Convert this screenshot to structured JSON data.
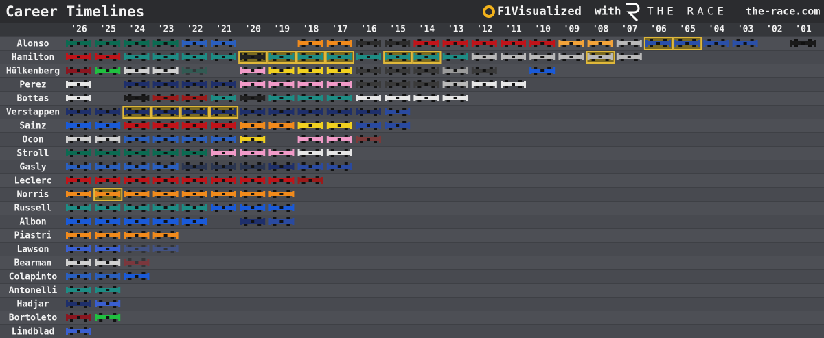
{
  "chart_data": {
    "type": "timeline",
    "title": "Career Timelines",
    "brand": "F1Visualized",
    "connector": "with",
    "partner": "THE RACE",
    "partner_site": "the-race.com",
    "categories": [
      "'26",
      "'25",
      "'24",
      "'23",
      "'22",
      "'21",
      "'20",
      "'19",
      "'18",
      "'17",
      "'16",
      "'15",
      "'14",
      "'13",
      "'12",
      "'11",
      "'10",
      "'09",
      "'08",
      "'07",
      "'06",
      "'05",
      "'04",
      "'03",
      "'02",
      "'01"
    ],
    "series": [
      {
        "name": "Alonso",
        "champion": [
          "'06",
          "'05"
        ],
        "partial": [],
        "values": [
          "#0b6b52",
          "#0b6b52",
          "#0b6b52",
          "#0b6b52",
          "#2a5fbf",
          "#2a5fbf",
          null,
          null,
          "#f08a1c",
          "#f08a1c",
          "#2d2d2d",
          "#2d2d2d",
          "#c0141a",
          "#c0141a",
          "#c0141a",
          "#c0141a",
          "#c0141a",
          "#f2a33a",
          "#f2a33a",
          "#b8b8b8",
          "#2a4fa8",
          "#2a4fa8",
          "#2a4fa8",
          "#2a4fa8",
          null,
          "#1a1a1a"
        ]
      },
      {
        "name": "Hamilton",
        "champion": [
          "'20",
          "'19",
          "'18",
          "'17",
          "'15",
          "'14",
          "'08"
        ],
        "partial": [],
        "values": [
          "#c0141a",
          "#c0141a",
          "#1d8c84",
          "#1d8c84",
          "#1d8c84",
          "#1d8c84",
          "#222222",
          "#1d8c84",
          "#1d8c84",
          "#1d8c84",
          "#1d8c84",
          "#1d8c84",
          "#1d8c84",
          "#1d8c84",
          "#b8b8b8",
          "#b8b8b8",
          "#b8b8b8",
          "#b8b8b8",
          "#b8b8b8",
          "#b8b8b8",
          null,
          null,
          null,
          null,
          null,
          null
        ]
      },
      {
        "name": "Hülkenberg",
        "champion": [],
        "partial": [
          "'22"
        ],
        "values": [
          "#8a1620",
          "#20c040",
          "#d0d0d0",
          "#d0d0d0",
          "#0b6b52",
          null,
          "#f19bc8",
          "#f0d020",
          "#f0d020",
          "#f0d020",
          "#3a3a3a",
          "#3a3a3a",
          "#3a3a3a",
          "#9a9a9a",
          "#3a3a3a",
          null,
          "#1a5ad8",
          null,
          null,
          null,
          null,
          null,
          null,
          null,
          null,
          null
        ]
      },
      {
        "name": "Perez",
        "champion": [],
        "partial": [],
        "values": [
          "#e6e6e6",
          null,
          "#1e2f6b",
          "#1e2f6b",
          "#1e2f6b",
          "#1e2f6b",
          "#f19bc8",
          "#f19bc8",
          "#f19bc8",
          "#f19bc8",
          "#3a3a3a",
          "#3a3a3a",
          "#3a3a3a",
          "#b8b8b8",
          "#e6e6e6",
          "#e6e6e6",
          null,
          null,
          null,
          null,
          null,
          null,
          null,
          null,
          null,
          null
        ]
      },
      {
        "name": "Bottas",
        "champion": [],
        "partial": [],
        "values": [
          "#e6e6e6",
          null,
          "#1b1b1b",
          "#9b1b1b",
          "#9b1b1b",
          "#1d8c84",
          "#222222",
          "#1d8c84",
          "#1d8c84",
          "#1d8c84",
          "#e6e6e6",
          "#e6e6e6",
          "#e6e6e6",
          "#e6e6e6",
          null,
          null,
          null,
          null,
          null,
          null,
          null,
          null,
          null,
          null,
          null,
          null
        ]
      },
      {
        "name": "Verstappen",
        "champion": [
          "'24",
          "'23",
          "'22",
          "'21"
        ],
        "partial": [],
        "values": [
          "#1e2f6b",
          "#1e2f6b",
          "#1e2f6b",
          "#1e2f6b",
          "#1e2f6b",
          "#1e2f6b",
          "#1e2f6b",
          "#1e2f6b",
          "#1e2f6b",
          "#1e2f6b",
          "#1e2f6b",
          "#2a4aa0",
          null,
          null,
          null,
          null,
          null,
          null,
          null,
          null,
          null,
          null,
          null,
          null,
          null,
          null
        ]
      },
      {
        "name": "Sainz",
        "champion": [],
        "partial": [],
        "values": [
          "#1a5ad8",
          "#1a5ad8",
          "#c0141a",
          "#c0141a",
          "#c0141a",
          "#c0141a",
          "#f08a1c",
          "#f08a1c",
          "#f0d020",
          "#f0d020",
          "#2a4aa0",
          "#2a4aa0",
          null,
          null,
          null,
          null,
          null,
          null,
          null,
          null,
          null,
          null,
          null,
          null,
          null,
          null
        ]
      },
      {
        "name": "Ocon",
        "champion": [],
        "partial": [],
        "values": [
          "#d0d0d0",
          "#d0d0d0",
          "#2a5fbf",
          "#2a5fbf",
          "#2a5fbf",
          "#2a5fbf",
          "#f0d020",
          null,
          "#f19bc8",
          "#f19bc8",
          "#7a3a3a",
          null,
          null,
          null,
          null,
          null,
          null,
          null,
          null,
          null,
          null,
          null,
          null,
          null,
          null,
          null
        ]
      },
      {
        "name": "Stroll",
        "champion": [],
        "partial": [],
        "values": [
          "#0b6b52",
          "#0b6b52",
          "#0b6b52",
          "#0b6b52",
          "#0b6b52",
          "#f19bc8",
          "#f19bc8",
          "#f19bc8",
          "#e6e6e6",
          "#e6e6e6",
          null,
          null,
          null,
          null,
          null,
          null,
          null,
          null,
          null,
          null,
          null,
          null,
          null,
          null,
          null,
          null
        ]
      },
      {
        "name": "Gasly",
        "champion": [],
        "partial": [],
        "values": [
          "#2a5fbf",
          "#2a5fbf",
          "#2a5fbf",
          "#2a5fbf",
          "#2a3550",
          "#2a3550",
          "#2a3550",
          "#1e2f6b",
          "#2a4aa0",
          "#2a4aa0",
          null,
          null,
          null,
          null,
          null,
          null,
          null,
          null,
          null,
          null,
          null,
          null,
          null,
          null,
          null,
          null
        ]
      },
      {
        "name": "Leclerc",
        "champion": [],
        "partial": [],
        "values": [
          "#c0141a",
          "#c0141a",
          "#c0141a",
          "#c0141a",
          "#c0141a",
          "#c0141a",
          "#c0141a",
          "#c0141a",
          "#9b1b1b",
          null,
          null,
          null,
          null,
          null,
          null,
          null,
          null,
          null,
          null,
          null,
          null,
          null,
          null,
          null,
          null,
          null
        ]
      },
      {
        "name": "Norris",
        "champion": [
          "'25"
        ],
        "partial": [],
        "values": [
          "#f08a1c",
          "#f08a1c",
          "#f08a1c",
          "#f08a1c",
          "#f08a1c",
          "#f08a1c",
          "#f08a1c",
          "#f08a1c",
          null,
          null,
          null,
          null,
          null,
          null,
          null,
          null,
          null,
          null,
          null,
          null,
          null,
          null,
          null,
          null,
          null,
          null
        ]
      },
      {
        "name": "Russell",
        "champion": [],
        "partial": [],
        "values": [
          "#1d8c84",
          "#1d8c84",
          "#1d8c84",
          "#1d8c84",
          "#1d8c84",
          "#1a5ad8",
          "#1a5ad8",
          "#1a5ad8",
          null,
          null,
          null,
          null,
          null,
          null,
          null,
          null,
          null,
          null,
          null,
          null,
          null,
          null,
          null,
          null,
          null,
          null
        ]
      },
      {
        "name": "Albon",
        "champion": [],
        "partial": [],
        "values": [
          "#1a5ad8",
          "#1a5ad8",
          "#1a5ad8",
          "#1a5ad8",
          "#1a5ad8",
          null,
          "#1e2f6b",
          "#2a4aa0",
          null,
          null,
          null,
          null,
          null,
          null,
          null,
          null,
          null,
          null,
          null,
          null,
          null,
          null,
          null,
          null,
          null,
          null
        ]
      },
      {
        "name": "Piastri",
        "champion": [],
        "partial": [],
        "values": [
          "#f08a1c",
          "#f08a1c",
          "#f08a1c",
          "#f08a1c",
          null,
          null,
          null,
          null,
          null,
          null,
          null,
          null,
          null,
          null,
          null,
          null,
          null,
          null,
          null,
          null,
          null,
          null,
          null,
          null,
          null,
          null
        ]
      },
      {
        "name": "Lawson",
        "champion": [],
        "partial": [
          "'24",
          "'23"
        ],
        "values": [
          "#3a5fd0",
          "#3a5fd0",
          "#3a5fd0",
          "#3a5fd0",
          null,
          null,
          null,
          null,
          null,
          null,
          null,
          null,
          null,
          null,
          null,
          null,
          null,
          null,
          null,
          null,
          null,
          null,
          null,
          null,
          null,
          null
        ]
      },
      {
        "name": "Bearman",
        "champion": [],
        "partial": [
          "'24"
        ],
        "values": [
          "#d0d0d0",
          "#d0d0d0",
          "#c0141a",
          null,
          null,
          null,
          null,
          null,
          null,
          null,
          null,
          null,
          null,
          null,
          null,
          null,
          null,
          null,
          null,
          null,
          null,
          null,
          null,
          null,
          null,
          null
        ]
      },
      {
        "name": "Colapinto",
        "champion": [],
        "partial": [],
        "values": [
          "#2a5fbf",
          "#2a5fbf",
          "#1a5ad8",
          null,
          null,
          null,
          null,
          null,
          null,
          null,
          null,
          null,
          null,
          null,
          null,
          null,
          null,
          null,
          null,
          null,
          null,
          null,
          null,
          null,
          null,
          null
        ]
      },
      {
        "name": "Antonelli",
        "champion": [],
        "partial": [],
        "values": [
          "#1d8c84",
          "#1d8c84",
          null,
          null,
          null,
          null,
          null,
          null,
          null,
          null,
          null,
          null,
          null,
          null,
          null,
          null,
          null,
          null,
          null,
          null,
          null,
          null,
          null,
          null,
          null,
          null
        ]
      },
      {
        "name": "Hadjar",
        "champion": [],
        "partial": [],
        "values": [
          "#1e2f6b",
          "#3a5fd0",
          null,
          null,
          null,
          null,
          null,
          null,
          null,
          null,
          null,
          null,
          null,
          null,
          null,
          null,
          null,
          null,
          null,
          null,
          null,
          null,
          null,
          null,
          null,
          null
        ]
      },
      {
        "name": "Bortoleto",
        "champion": [],
        "partial": [],
        "values": [
          "#8a1620",
          "#20c040",
          null,
          null,
          null,
          null,
          null,
          null,
          null,
          null,
          null,
          null,
          null,
          null,
          null,
          null,
          null,
          null,
          null,
          null,
          null,
          null,
          null,
          null,
          null,
          null
        ]
      },
      {
        "name": "Lindblad",
        "champion": [],
        "partial": [],
        "values": [
          "#3a5fd0",
          null,
          null,
          null,
          null,
          null,
          null,
          null,
          null,
          null,
          null,
          null,
          null,
          null,
          null,
          null,
          null,
          null,
          null,
          null,
          null,
          null,
          null,
          null,
          null,
          null
        ]
      }
    ]
  }
}
